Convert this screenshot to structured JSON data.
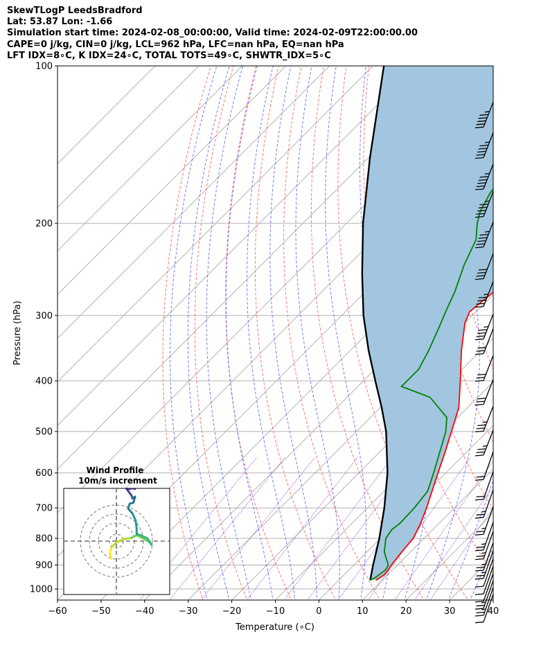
{
  "header": {
    "line1": "SkewTLogP LeedsBradford",
    "line2": "Lat: 53.87   Lon: -1.66",
    "line3": "Simulation start time: 2024-02-08_00:00:00, Valid time: 2024-02-09T22:00:00.00",
    "line4": "CAPE=0 j/kg, CIN=0 j/kg, LCL=962 hPa, LFC=nan hPa, EQ=nan hPa",
    "line5": "LFT IDX=8∘C, K IDX=24∘C, TOTAL TOTS=49∘C, SHWTR_IDX=5∘C"
  },
  "chart_data": {
    "type": "line",
    "subtype": "skew-T log-P",
    "xlabel": "Temperature (∘C)",
    "ylabel": "Pressure (hPa)",
    "xlim": [
      -60,
      40
    ],
    "ylim": [
      1050,
      100
    ],
    "y_scale": "log",
    "grid": true,
    "x_ticks": [
      -60,
      -50,
      -40,
      -30,
      -20,
      -10,
      0,
      10,
      20,
      30,
      40
    ],
    "x_tick_labels": [
      "−60",
      "−50",
      "−40",
      "−30",
      "−20",
      "−10",
      "0",
      "10",
      "20",
      "30",
      "40"
    ],
    "y_ticks": [
      100,
      200,
      300,
      400,
      500,
      600,
      700,
      800,
      900,
      1000
    ],
    "y_tick_labels": [
      "100",
      "200",
      "300",
      "400",
      "500",
      "600",
      "700",
      "800",
      "900",
      "1000"
    ],
    "colors": {
      "temperature": "#ff0000",
      "dewpoint": "#008000",
      "parcel": "#000000",
      "shade": "#a2c6df",
      "dry_adiabat": "#ff6666",
      "moist_adiabat": "#6a6aff",
      "mixing_ratio": "#8844cc",
      "isotherm": "#aaaaaa"
    },
    "series": [
      {
        "key": "temperature",
        "pressure": [
          962,
          940,
          920,
          900,
          850,
          800,
          750,
          700,
          650,
          600,
          550,
          500,
          450,
          400,
          350,
          310,
          295,
          270,
          230,
          200,
          180,
          165,
          150,
          140,
          125,
          112,
          100
        ],
        "temperature": [
          8.5,
          9.2,
          9.0,
          8.6,
          8.0,
          7.5,
          5.8,
          3.6,
          1.0,
          -1.8,
          -4.8,
          -8.2,
          -12.0,
          -17.8,
          -24.5,
          -30.0,
          -31.5,
          -30.5,
          -27.0,
          -23.0,
          -18.0,
          -15.5,
          -14.5,
          -14.0,
          -13.5,
          -13.0,
          -13.0
        ]
      },
      {
        "key": "dewpoint",
        "pressure": [
          962,
          950,
          920,
          900,
          850,
          800,
          770,
          750,
          700,
          650,
          600,
          550,
          500,
          470,
          430,
          410,
          380,
          350,
          310,
          295,
          270,
          240,
          215,
          200,
          190,
          175,
          100
        ],
        "temperature": [
          7.2,
          7.8,
          8.4,
          7.9,
          4.0,
          1.2,
          0.6,
          1.0,
          0.8,
          0.0,
          -2.8,
          -6.0,
          -9.5,
          -12.5,
          -21.0,
          -30.0,
          -30.0,
          -32.0,
          -35.5,
          -37.0,
          -39.5,
          -43.5,
          -46.5,
          -50.0,
          -52.0,
          -54.0,
          -60.0
        ]
      },
      {
        "key": "parcel",
        "pressure": [
          962,
          900,
          800,
          700,
          600,
          500,
          450,
          400,
          350,
          300,
          250,
          200,
          150,
          100
        ],
        "temperature": [
          7.2,
          4.4,
          -0.3,
          -6.1,
          -13.4,
          -23.2,
          -29.7,
          -37.3,
          -45.8,
          -55.0,
          -64.8,
          -76.2,
          -89.6,
          -107.5
        ]
      }
    ],
    "wind_barbs": {
      "pressure": [
        1030,
        1000,
        970,
        940,
        910,
        880,
        850,
        820,
        780,
        750,
        700,
        650,
        600,
        550,
        500,
        450,
        400,
        360,
        320,
        300,
        260,
        230,
        200,
        175,
        155,
        135,
        118
      ],
      "knots": [
        10,
        15,
        15,
        10,
        10,
        10,
        15,
        15,
        15,
        15,
        15,
        15,
        20,
        20,
        25,
        25,
        30,
        30,
        30,
        35,
        35,
        40,
        45,
        45,
        45,
        45,
        45
      ]
    },
    "hodograph": {
      "title": "Wind Profile",
      "subtitle": "10m/s increment",
      "u": [
        -1.0,
        -1.2,
        -0.9,
        0.1,
        1.5,
        2.8,
        3.8,
        4.8,
        6.2,
        6.6,
        5.8,
        4.6,
        3.8,
        3.8,
        3.6,
        3.0,
        2.2,
        2.5,
        3.2,
        3.5,
        3.0,
        2.8,
        2.2,
        2.0,
        2.6,
        3.1,
        3.7,
        3.5,
        2.4,
        1.5,
        2.0
      ],
      "v": [
        -3.3,
        -2.2,
        -1.1,
        -0.2,
        0.4,
        0.6,
        1.1,
        0.6,
        -0.2,
        -0.7,
        0.5,
        1.1,
        1.3,
        2.4,
        3.9,
        5.2,
        6.1,
        7.0,
        7.2,
        8.3,
        8.0,
        8.6,
        9.4,
        9.7,
        9.8,
        10.0,
        10.0,
        9.8,
        10.0,
        10.1,
        9.8
      ]
    }
  }
}
